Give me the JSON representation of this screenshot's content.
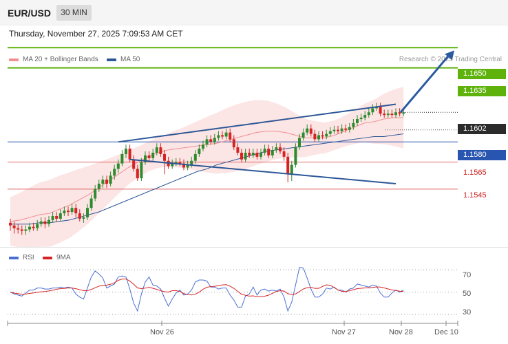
{
  "header": {
    "symbol": "EUR/USD",
    "timeframe": "30 MIN"
  },
  "timestamp": "Thursday, November 27, 2025 7:09:53 AM CET",
  "legend": [
    {
      "label": "MA 20 + Bollinger Bands",
      "color": "#f08f8f"
    },
    {
      "label": "MA 50",
      "color": "#2c5796"
    }
  ],
  "credit": "Research © 2025 Trading Central",
  "colors": {
    "up": "#2e8b2e",
    "down": "#d62222",
    "resistance": "#5fb20c",
    "pivot": "#2855b0",
    "support": "#e06666",
    "arrow": "#2c5aa0"
  },
  "chart_data": [
    {
      "type": "candlestick",
      "instrument": "EUR/USD",
      "interval": "30 MIN",
      "ylim": [
        1.1502,
        1.1667
      ],
      "x_ticks": [
        "Nov 26",
        "Nov 27",
        "Nov 28",
        "Dec 10"
      ],
      "levels": [
        {
          "label": "1.1650",
          "value": 1.165,
          "role": "resistance"
        },
        {
          "label": "1.1635",
          "value": 1.1635,
          "role": "resistance"
        },
        {
          "label": "1.1602",
          "value": 1.1602,
          "role": "last"
        },
        {
          "label": "1.1580",
          "value": 1.158,
          "role": "pivot"
        },
        {
          "label": "1.1565",
          "value": 1.1565,
          "role": "support"
        },
        {
          "label": "1.1545",
          "value": 1.1545,
          "role": "support"
        }
      ],
      "series": [
        {
          "name": "MA 20 + Bollinger Bands",
          "values": [
            1.1521,
            1.1522,
            1.1524,
            1.1526,
            1.1527,
            1.153,
            1.1533,
            1.1537,
            1.1541,
            1.1546,
            1.1551,
            1.1556,
            1.1561,
            1.1565,
            1.1569,
            1.1572,
            1.1574,
            1.1575,
            1.1576,
            1.1577,
            1.1578,
            1.1579,
            1.1581,
            1.1583,
            1.1585,
            1.1587,
            1.1588,
            1.1588,
            1.1587,
            1.1585,
            1.1583,
            1.1583,
            1.1583,
            1.1585,
            1.1588,
            1.1591,
            1.1594,
            1.1595,
            1.1597,
            1.1598,
            1.1598
          ]
        },
        {
          "name": "MA 50",
          "values": [
            1.1519,
            1.1519,
            1.1519,
            1.152,
            1.152,
            1.1521,
            1.1522,
            1.1524,
            1.1526,
            1.1528,
            1.1531,
            1.1534,
            1.1537,
            1.154,
            1.1543,
            1.1546,
            1.1549,
            1.1552,
            1.1555,
            1.1558,
            1.156,
            1.1563,
            1.1565,
            1.1567,
            1.1569,
            1.1571,
            1.1573,
            1.1574,
            1.1575,
            1.1576,
            1.1577,
            1.1578,
            1.1579,
            1.158,
            1.1581,
            1.1582,
            1.1583,
            1.1584,
            1.1584,
            1.1585,
            1.1586
          ]
        }
      ],
      "candles": [
        [
          1.152,
          1.1518,
          1.1514
        ],
        [
          1.1518,
          1.1516,
          1.1512
        ],
        [
          1.1516,
          1.1515,
          1.1512
        ],
        [
          1.1515,
          1.1514,
          1.1511
        ],
        [
          1.1514,
          1.1515,
          1.1511
        ],
        [
          1.1515,
          1.1517,
          1.1513
        ],
        [
          1.1517,
          1.1516,
          1.1514
        ],
        [
          1.1516,
          1.1519,
          1.1514
        ],
        [
          1.1519,
          1.1521,
          1.1517
        ],
        [
          1.1521,
          1.1519,
          1.1516
        ],
        [
          1.1519,
          1.1522,
          1.1517
        ],
        [
          1.1522,
          1.1525,
          1.152
        ],
        [
          1.1525,
          1.1523,
          1.1521
        ],
        [
          1.1523,
          1.1527,
          1.1521
        ],
        [
          1.1527,
          1.1529,
          1.1525
        ],
        [
          1.1529,
          1.1528,
          1.1525
        ],
        [
          1.1528,
          1.1531,
          1.1526
        ],
        [
          1.1531,
          1.1527,
          1.1524
        ],
        [
          1.1527,
          1.1523,
          1.1521
        ],
        [
          1.1523,
          1.1524,
          1.152
        ],
        [
          1.1524,
          1.1531,
          1.1522
        ],
        [
          1.1531,
          1.1538,
          1.1529
        ],
        [
          1.1538,
          1.1545,
          1.1536
        ],
        [
          1.1545,
          1.1549,
          1.1543
        ],
        [
          1.1549,
          1.1552,
          1.1546
        ],
        [
          1.1552,
          1.1549,
          1.1546
        ],
        [
          1.1549,
          1.1555,
          1.1547
        ],
        [
          1.1555,
          1.156,
          1.1552
        ],
        [
          1.156,
          1.1564,
          1.1557
        ],
        [
          1.1564,
          1.1571,
          1.1562
        ],
        [
          1.1571,
          1.1575,
          1.1568
        ],
        [
          1.1575,
          1.1567,
          1.1565
        ],
        [
          1.1567,
          1.156,
          1.1558
        ],
        [
          1.156,
          1.1553,
          1.1551
        ],
        [
          1.1553,
          1.1565,
          1.1551
        ],
        [
          1.1565,
          1.157,
          1.1563
        ],
        [
          1.157,
          1.1568,
          1.1566
        ],
        [
          1.1568,
          1.1572,
          1.1566
        ],
        [
          1.1572,
          1.1576,
          1.157
        ],
        [
          1.1576,
          1.1571,
          1.1569
        ],
        [
          1.1571,
          1.1566,
          1.1556
        ],
        [
          1.1566,
          1.1562,
          1.156
        ],
        [
          1.1562,
          1.1564,
          1.156
        ],
        [
          1.1564,
          1.1565,
          1.1562
        ],
        [
          1.1565,
          1.1564,
          1.1562
        ],
        [
          1.1564,
          1.1561,
          1.1559
        ],
        [
          1.1561,
          1.1563,
          1.1559
        ],
        [
          1.1563,
          1.1566,
          1.1561
        ],
        [
          1.1566,
          1.1571,
          1.1564
        ],
        [
          1.1571,
          1.1575,
          1.1569
        ],
        [
          1.1575,
          1.1578,
          1.1573
        ],
        [
          1.1578,
          1.1582,
          1.1576
        ],
        [
          1.1582,
          1.158,
          1.1578
        ],
        [
          1.158,
          1.1583,
          1.1578
        ],
        [
          1.1583,
          1.1585,
          1.1581
        ],
        [
          1.1585,
          1.1584,
          1.1582
        ],
        [
          1.1584,
          1.1587,
          1.1582
        ],
        [
          1.1587,
          1.1582,
          1.158
        ],
        [
          1.1582,
          1.1576,
          1.1574
        ],
        [
          1.1576,
          1.1572,
          1.157
        ],
        [
          1.1572,
          1.1567,
          1.1565
        ],
        [
          1.1567,
          1.1572,
          1.1565
        ],
        [
          1.1572,
          1.157,
          1.1568
        ],
        [
          1.157,
          1.1572,
          1.1568
        ],
        [
          1.1572,
          1.1569,
          1.1567
        ],
        [
          1.1569,
          1.1572,
          1.1567
        ],
        [
          1.1572,
          1.1575,
          1.157
        ],
        [
          1.1575,
          1.157,
          1.1568
        ],
        [
          1.157,
          1.1574,
          1.1568
        ],
        [
          1.1574,
          1.1576,
          1.1572
        ],
        [
          1.1576,
          1.1573,
          1.1571
        ],
        [
          1.1573,
          1.1569,
          1.1566
        ],
        [
          1.1569,
          1.1556,
          1.155
        ],
        [
          1.1556,
          1.1563,
          1.1551
        ],
        [
          1.1563,
          1.1576,
          1.1561
        ],
        [
          1.1576,
          1.1583,
          1.1574
        ],
        [
          1.1583,
          1.1587,
          1.1581
        ],
        [
          1.1587,
          1.159,
          1.1585
        ],
        [
          1.159,
          1.1586,
          1.1584
        ],
        [
          1.1586,
          1.1582,
          1.158
        ],
        [
          1.1582,
          1.1585,
          1.158
        ],
        [
          1.1585,
          1.1584,
          1.1582
        ],
        [
          1.1584,
          1.1586,
          1.1582
        ],
        [
          1.1586,
          1.1588,
          1.1584
        ],
        [
          1.1588,
          1.1589,
          1.1586
        ],
        [
          1.1589,
          1.1588,
          1.1586
        ],
        [
          1.1588,
          1.159,
          1.1586
        ],
        [
          1.159,
          1.1589,
          1.1587
        ],
        [
          1.1589,
          1.1591,
          1.1587
        ],
        [
          1.1591,
          1.1594,
          1.1589
        ],
        [
          1.1594,
          1.1597,
          1.1592
        ],
        [
          1.1597,
          1.1598,
          1.1595
        ],
        [
          1.1598,
          1.16,
          1.1596
        ],
        [
          1.16,
          1.1602,
          1.1598
        ],
        [
          1.1602,
          1.1605,
          1.16
        ],
        [
          1.1605,
          1.1606,
          1.1603
        ],
        [
          1.1606,
          1.1601,
          1.1599
        ],
        [
          1.1601,
          1.16,
          1.1598
        ],
        [
          1.16,
          1.1601,
          1.1598
        ],
        [
          1.1601,
          1.16,
          1.1598
        ],
        [
          1.16,
          1.1602,
          1.1598
        ],
        [
          1.1602,
          1.1601,
          1.1599
        ],
        [
          1.1601,
          1.1602,
          1.1599
        ]
      ],
      "candle_format": "[open, close, low]; highs slightly above max(open, close)",
      "trendlines": [
        {
          "name": "upper-channel",
          "from": [
            28,
            1.158
          ],
          "to": [
            100,
            1.1608
          ]
        },
        {
          "name": "lower-channel",
          "from": [
            31,
            1.1567
          ],
          "to": [
            100,
            1.1549
          ]
        }
      ],
      "projection": {
        "from_value": 1.1602,
        "to_value": 1.165
      }
    },
    {
      "type": "line",
      "title": "RSI",
      "ylim": [
        25,
        75
      ],
      "y_ticks": [
        "70",
        "50",
        "30"
      ],
      "series": [
        {
          "name": "RSI",
          "color": "#4a6fd1"
        },
        {
          "name": "9MA",
          "color": "#d62222"
        }
      ]
    }
  ]
}
